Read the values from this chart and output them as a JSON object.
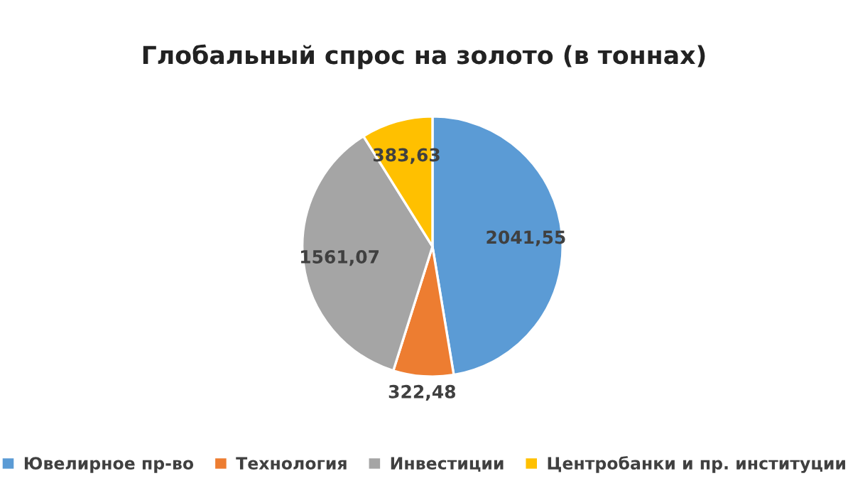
{
  "chart_data": {
    "type": "pie",
    "title": "Глобальный спрос на золото (в тоннах)",
    "categories": [
      "Ювелирное пр-во",
      "Технология",
      "Инвестиции",
      "Центробанки и пр. институции"
    ],
    "values": [
      2041.55,
      322.48,
      1561.07,
      383.63
    ],
    "value_labels": [
      "2041,55",
      "322,48",
      "1561,07",
      "383,63"
    ],
    "colors": [
      "#5b9bd5",
      "#ed7d31",
      "#a5a5a5",
      "#ffc000"
    ],
    "legend": "bottom"
  }
}
